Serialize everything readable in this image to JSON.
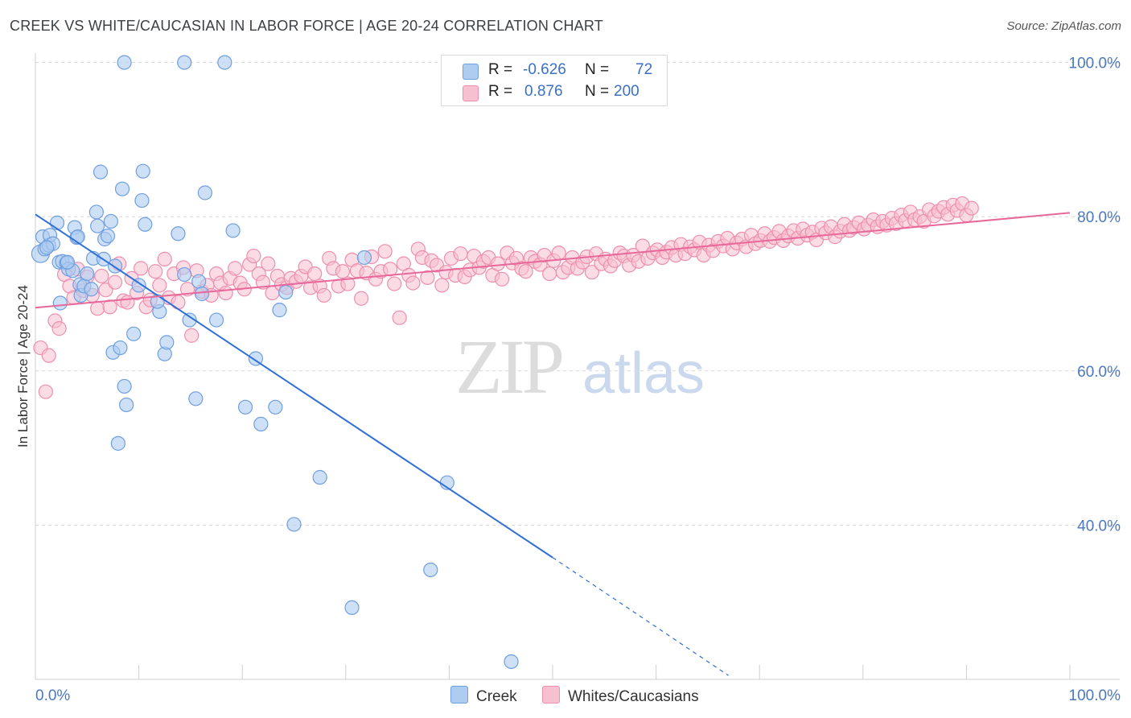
{
  "header": {
    "title": "CREEK VS WHITE/CAUCASIAN IN LABOR FORCE | AGE 20-24 CORRELATION CHART",
    "source": "Source: ZipAtlas.com"
  },
  "watermark": {
    "zip": "ZIP",
    "atlas": "atlas"
  },
  "colors": {
    "creek_fill": "#aecbf0",
    "creek_stroke": "#6f9fe0",
    "creek_line": "#2f6fd6",
    "white_fill": "#f7c0d0",
    "white_stroke": "#ee8fae",
    "white_line": "#e8679a",
    "tick_label": "#4a78c2",
    "grid": "#d8d8d8"
  },
  "stats": {
    "creek": {
      "r_label": "R =",
      "r_value": "-0.626",
      "n_label": "N =",
      "n_value": "72"
    },
    "white": {
      "r_label": "R =",
      "r_value": "0.876",
      "n_label": "N =",
      "n_value": "200"
    }
  },
  "legend": {
    "creek": "Creek",
    "white": "Whites/Caucasians"
  },
  "chart_data": {
    "type": "scatter",
    "xlabel": "",
    "ylabel": "In Labor Force | Age 20-24",
    "xlim": [
      0,
      100
    ],
    "ylim": [
      20,
      102
    ],
    "x_tick_labels": {
      "min": "0.0%",
      "max": "100.0%"
    },
    "y_ticks": [
      {
        "value": 40,
        "label": "40.0%"
      },
      {
        "value": 60,
        "label": "60.0%"
      },
      {
        "value": 80,
        "label": "80.0%"
      },
      {
        "value": 100,
        "label": "100.0%"
      }
    ],
    "grid": true,
    "legend_position": "bottom-center",
    "series": [
      {
        "name": "Creek",
        "trend": {
          "x0": 0,
          "y0": 80.3,
          "x1": 50,
          "y1": 35.8,
          "dashed_to_x": 67,
          "dashed_to_y": 20.5
        },
        "points": [
          [
            0.5,
            75.2
          ],
          [
            0.7,
            77.4
          ],
          [
            0.9,
            75.8
          ],
          [
            1.3,
            76.3
          ],
          [
            1.4,
            77.6
          ],
          [
            1.7,
            76.5
          ],
          [
            2.1,
            79.2
          ],
          [
            2.3,
            74.1
          ],
          [
            2.4,
            68.8
          ],
          [
            2.6,
            74.2
          ],
          [
            3.0,
            74.0
          ],
          [
            3.2,
            73.2
          ],
          [
            3.6,
            73.0
          ],
          [
            3.8,
            78.6
          ],
          [
            4.0,
            77.3
          ],
          [
            4.3,
            71.2
          ],
          [
            4.4,
            69.8
          ],
          [
            4.7,
            71.0
          ],
          [
            5.0,
            72.6
          ],
          [
            5.4,
            70.6
          ],
          [
            5.6,
            74.6
          ],
          [
            5.9,
            80.6
          ],
          [
            6.0,
            78.8
          ],
          [
            6.3,
            85.8
          ],
          [
            6.6,
            74.5
          ],
          [
            6.7,
            77.1
          ],
          [
            7.0,
            77.5
          ],
          [
            7.3,
            79.4
          ],
          [
            7.7,
            73.6
          ],
          [
            7.5,
            62.4
          ],
          [
            8.0,
            50.6
          ],
          [
            8.2,
            63.0
          ],
          [
            8.4,
            83.6
          ],
          [
            8.6,
            58.0
          ],
          [
            8.8,
            55.6
          ],
          [
            9.5,
            64.8
          ],
          [
            10.0,
            71.1
          ],
          [
            10.3,
            82.1
          ],
          [
            10.4,
            85.9
          ],
          [
            10.6,
            79.0
          ],
          [
            12.0,
            67.7
          ],
          [
            12.5,
            62.2
          ],
          [
            12.7,
            63.7
          ],
          [
            13.8,
            77.8
          ],
          [
            14.4,
            72.5
          ],
          [
            14.9,
            66.6
          ],
          [
            15.5,
            56.4
          ],
          [
            15.8,
            71.6
          ],
          [
            16.1,
            70.0
          ],
          [
            16.4,
            83.1
          ],
          [
            17.5,
            66.6
          ],
          [
            19.1,
            78.2
          ],
          [
            20.3,
            55.3
          ],
          [
            21.3,
            61.6
          ],
          [
            21.8,
            53.1
          ],
          [
            23.2,
            55.3
          ],
          [
            23.6,
            67.9
          ],
          [
            24.2,
            70.2
          ],
          [
            25.0,
            40.1
          ],
          [
            27.5,
            46.2
          ],
          [
            30.6,
            29.3
          ],
          [
            31.8,
            74.7
          ],
          [
            38.2,
            34.2
          ],
          [
            39.8,
            45.5
          ],
          [
            46.0,
            22.3
          ],
          [
            8.6,
            100.0
          ],
          [
            14.4,
            100.0
          ],
          [
            18.3,
            100.0
          ],
          [
            3.1,
            74.1
          ],
          [
            1.1,
            76.0
          ],
          [
            4.1,
            77.4
          ],
          [
            11.8,
            69.0
          ]
        ]
      },
      {
        "name": "Whites/Caucasians",
        "trend": {
          "x0": 0,
          "y0": 68.2,
          "x1": 100,
          "y1": 80.5
        },
        "points": [
          [
            0.5,
            63.0
          ],
          [
            1.0,
            57.3
          ],
          [
            1.3,
            62.0
          ],
          [
            1.9,
            66.5
          ],
          [
            2.3,
            65.5
          ],
          [
            2.8,
            72.5
          ],
          [
            3.3,
            71.0
          ],
          [
            3.7,
            69.5
          ],
          [
            4.1,
            73.2
          ],
          [
            4.6,
            70.4
          ],
          [
            5.0,
            72.2
          ],
          [
            5.5,
            69.8
          ],
          [
            6.0,
            68.1
          ],
          [
            6.4,
            72.3
          ],
          [
            6.8,
            70.5
          ],
          [
            7.2,
            68.3
          ],
          [
            7.7,
            71.5
          ],
          [
            8.1,
            73.9
          ],
          [
            8.5,
            69.1
          ],
          [
            8.9,
            68.9
          ],
          [
            9.3,
            72.0
          ],
          [
            9.8,
            70.1
          ],
          [
            10.2,
            73.3
          ],
          [
            10.7,
            68.3
          ],
          [
            11.1,
            69.2
          ],
          [
            11.6,
            72.9
          ],
          [
            12.0,
            71.1
          ],
          [
            12.5,
            74.5
          ],
          [
            12.9,
            69.5
          ],
          [
            13.4,
            72.6
          ],
          [
            13.8,
            68.9
          ],
          [
            14.3,
            73.4
          ],
          [
            14.7,
            70.6
          ],
          [
            15.1,
            64.6
          ],
          [
            15.6,
            73.0
          ],
          [
            16.1,
            70.3
          ],
          [
            16.6,
            71.1
          ],
          [
            17.0,
            69.8
          ],
          [
            17.5,
            72.6
          ],
          [
            17.9,
            71.4
          ],
          [
            18.4,
            70.1
          ],
          [
            18.8,
            72.0
          ],
          [
            19.3,
            73.3
          ],
          [
            19.8,
            71.4
          ],
          [
            20.2,
            70.6
          ],
          [
            20.7,
            73.8
          ],
          [
            21.1,
            74.9
          ],
          [
            21.6,
            72.6
          ],
          [
            22.0,
            71.5
          ],
          [
            22.5,
            73.9
          ],
          [
            22.9,
            70.1
          ],
          [
            23.4,
            72.3
          ],
          [
            23.8,
            71.2
          ],
          [
            24.3,
            70.8
          ],
          [
            24.7,
            72.0
          ],
          [
            25.2,
            71.6
          ],
          [
            25.7,
            72.3
          ],
          [
            26.1,
            73.5
          ],
          [
            26.6,
            70.8
          ],
          [
            27.0,
            72.6
          ],
          [
            27.5,
            71.0
          ],
          [
            27.9,
            69.8
          ],
          [
            28.4,
            74.6
          ],
          [
            28.8,
            73.3
          ],
          [
            29.3,
            71.0
          ],
          [
            29.7,
            72.9
          ],
          [
            30.2,
            71.3
          ],
          [
            30.6,
            74.4
          ],
          [
            31.1,
            73.0
          ],
          [
            31.5,
            69.4
          ],
          [
            32.0,
            72.7
          ],
          [
            32.5,
            74.8
          ],
          [
            32.9,
            71.9
          ],
          [
            33.4,
            72.9
          ],
          [
            33.8,
            75.5
          ],
          [
            34.3,
            73.2
          ],
          [
            34.7,
            71.3
          ],
          [
            35.2,
            66.9
          ],
          [
            35.6,
            73.9
          ],
          [
            36.1,
            72.4
          ],
          [
            36.5,
            71.4
          ],
          [
            37.0,
            75.8
          ],
          [
            37.4,
            74.7
          ],
          [
            37.9,
            72.1
          ],
          [
            38.3,
            74.3
          ],
          [
            38.8,
            73.7
          ],
          [
            39.3,
            71.1
          ],
          [
            39.7,
            72.8
          ],
          [
            40.2,
            74.6
          ],
          [
            40.6,
            72.4
          ],
          [
            41.1,
            75.2
          ],
          [
            41.5,
            72.2
          ],
          [
            42.0,
            73.1
          ],
          [
            42.4,
            74.9
          ],
          [
            42.9,
            73.4
          ],
          [
            43.3,
            74.2
          ],
          [
            43.8,
            74.7
          ],
          [
            44.2,
            72.4
          ],
          [
            44.7,
            73.9
          ],
          [
            45.1,
            71.9
          ],
          [
            45.6,
            75.3
          ],
          [
            46.1,
            74.0
          ],
          [
            46.5,
            74.6
          ],
          [
            47.0,
            73.3
          ],
          [
            47.4,
            72.9
          ],
          [
            47.9,
            74.7
          ],
          [
            48.3,
            74.2
          ],
          [
            48.8,
            73.8
          ],
          [
            49.2,
            75.0
          ],
          [
            49.7,
            72.6
          ],
          [
            50.1,
            74.3
          ],
          [
            50.6,
            75.3
          ],
          [
            51.0,
            72.8
          ],
          [
            51.5,
            73.4
          ],
          [
            51.9,
            74.7
          ],
          [
            52.4,
            73.3
          ],
          [
            52.9,
            74.1
          ],
          [
            53.3,
            74.8
          ],
          [
            53.8,
            72.8
          ],
          [
            54.2,
            75.2
          ],
          [
            54.7,
            73.9
          ],
          [
            55.1,
            74.5
          ],
          [
            55.6,
            73.6
          ],
          [
            56.0,
            74.3
          ],
          [
            56.5,
            75.3
          ],
          [
            56.9,
            74.9
          ],
          [
            57.4,
            73.7
          ],
          [
            57.8,
            75.0
          ],
          [
            58.3,
            74.2
          ],
          [
            58.7,
            76.2
          ],
          [
            59.2,
            74.6
          ],
          [
            59.7,
            75.3
          ],
          [
            60.1,
            75.7
          ],
          [
            60.6,
            74.7
          ],
          [
            61.0,
            75.4
          ],
          [
            61.5,
            76.0
          ],
          [
            61.9,
            75.0
          ],
          [
            62.4,
            76.4
          ],
          [
            62.8,
            75.2
          ],
          [
            63.3,
            76.1
          ],
          [
            63.7,
            75.7
          ],
          [
            64.2,
            76.7
          ],
          [
            64.6,
            75.0
          ],
          [
            65.1,
            76.3
          ],
          [
            65.5,
            75.6
          ],
          [
            66.0,
            76.8
          ],
          [
            66.5,
            76.2
          ],
          [
            66.9,
            77.2
          ],
          [
            67.4,
            75.8
          ],
          [
            67.8,
            76.6
          ],
          [
            68.3,
            77.1
          ],
          [
            68.7,
            76.1
          ],
          [
            69.2,
            77.6
          ],
          [
            69.6,
            76.5
          ],
          [
            70.1,
            76.9
          ],
          [
            70.5,
            77.8
          ],
          [
            71.0,
            76.8
          ],
          [
            71.4,
            77.3
          ],
          [
            71.9,
            78.1
          ],
          [
            72.3,
            76.9
          ],
          [
            72.8,
            77.5
          ],
          [
            73.3,
            78.2
          ],
          [
            73.7,
            77.2
          ],
          [
            74.2,
            78.4
          ],
          [
            74.6,
            77.6
          ],
          [
            75.1,
            78.0
          ],
          [
            75.5,
            77.0
          ],
          [
            76.0,
            78.5
          ],
          [
            76.4,
            77.9
          ],
          [
            76.9,
            78.7
          ],
          [
            77.3,
            77.4
          ],
          [
            77.8,
            78.1
          ],
          [
            78.2,
            79.0
          ],
          [
            78.7,
            78.2
          ],
          [
            79.1,
            78.6
          ],
          [
            79.6,
            79.2
          ],
          [
            80.1,
            78.4
          ],
          [
            80.5,
            78.9
          ],
          [
            81.0,
            79.6
          ],
          [
            81.4,
            78.7
          ],
          [
            81.9,
            79.4
          ],
          [
            82.3,
            78.9
          ],
          [
            82.8,
            79.8
          ],
          [
            83.2,
            79.1
          ],
          [
            83.7,
            80.2
          ],
          [
            84.1,
            79.5
          ],
          [
            84.6,
            80.6
          ],
          [
            85.0,
            79.6
          ],
          [
            85.5,
            80.0
          ],
          [
            85.9,
            79.4
          ],
          [
            86.4,
            80.9
          ],
          [
            86.9,
            80.1
          ],
          [
            87.3,
            80.7
          ],
          [
            87.8,
            81.2
          ],
          [
            88.2,
            80.3
          ],
          [
            88.7,
            81.5
          ],
          [
            89.1,
            80.8
          ],
          [
            89.6,
            81.7
          ],
          [
            90.0,
            80.2
          ],
          [
            90.5,
            81.1
          ]
        ]
      }
    ]
  }
}
